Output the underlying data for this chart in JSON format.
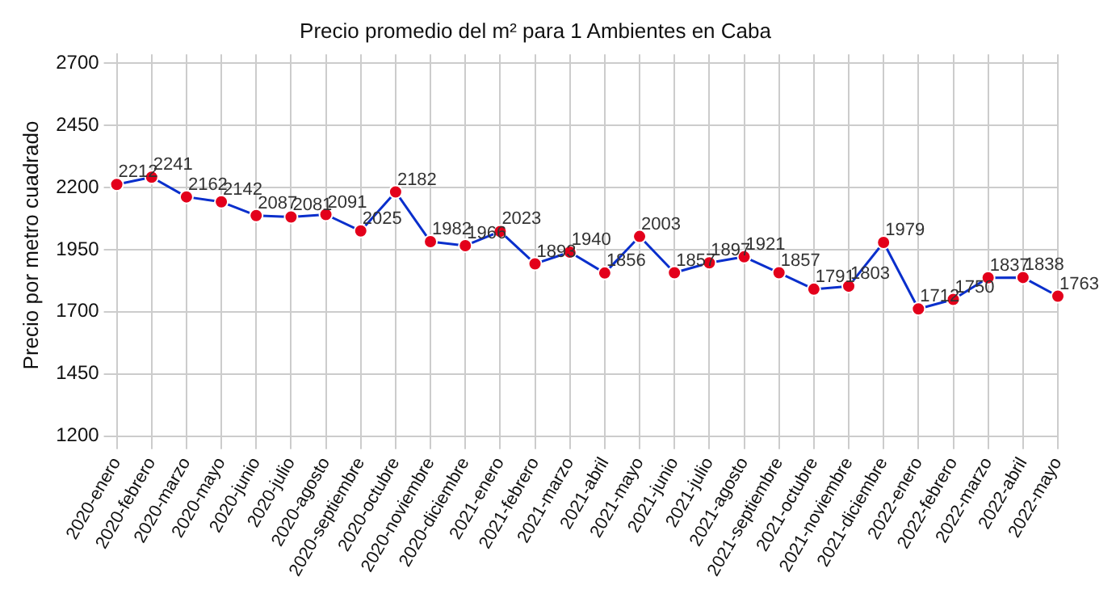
{
  "chart_data": {
    "type": "line",
    "title": "Precio promedio del m² para 1 Ambientes en Caba",
    "ylabel": "Precio por metro cuadrado",
    "categories": [
      "2020-enero",
      "2020-febrero",
      "2020-marzo",
      "2020-mayo",
      "2020-junio",
      "2020-julio",
      "2020-agosto",
      "2020-septiembre",
      "2020-octubre",
      "2020-noviembre",
      "2020-diciembre",
      "2021-enero",
      "2021-febrero",
      "2021-marzo",
      "2021-abril",
      "2021-mayo",
      "2021-junio",
      "2021-julio",
      "2021-agosto",
      "2021-septiembre",
      "2021-octubre",
      "2021-noviembre",
      "2021-diciembre",
      "2022-enero",
      "2022-febrero",
      "2022-marzo",
      "2022-abril",
      "2022-mayo"
    ],
    "series": [
      {
        "color": "#0a2fcc",
        "colors": [
          "#e3001b",
          "#e3001b",
          "#e3001b",
          "#e3001b",
          "#e3001b",
          "#e3001b",
          "#e3001b",
          "#e3001b",
          "#e3001b",
          "#e3001b",
          "#e3001b",
          "#e3001b",
          "#e3001b",
          "#e3001b",
          "#e3001b",
          "#e3001b",
          "#e3001b",
          "#e3001b",
          "#e3001b",
          "#e3001b",
          "#e3001b",
          "#e3001b",
          "#e3001b",
          "#e3001b",
          "#e3001b",
          "#e3001b",
          "#e3001b",
          "#e3001b"
        ],
        "values": [
          2212,
          2241,
          2162,
          2142,
          2087,
          2081,
          2091,
          2025,
          2182,
          1982,
          1966,
          2023,
          1893,
          1940,
          1856,
          2003,
          1857,
          1897,
          1921,
          1857,
          1791,
          1803,
          1979,
          1712,
          1750,
          1837,
          1838,
          1763
        ]
      }
    ],
    "ylim": [
      1200,
      2735
    ],
    "yticks": [
      1200,
      1450,
      1700,
      1950,
      2200,
      2450,
      2700
    ],
    "grid": true,
    "marker": "circle",
    "line_style": "solid",
    "data_labels": true,
    "legend": false
  }
}
